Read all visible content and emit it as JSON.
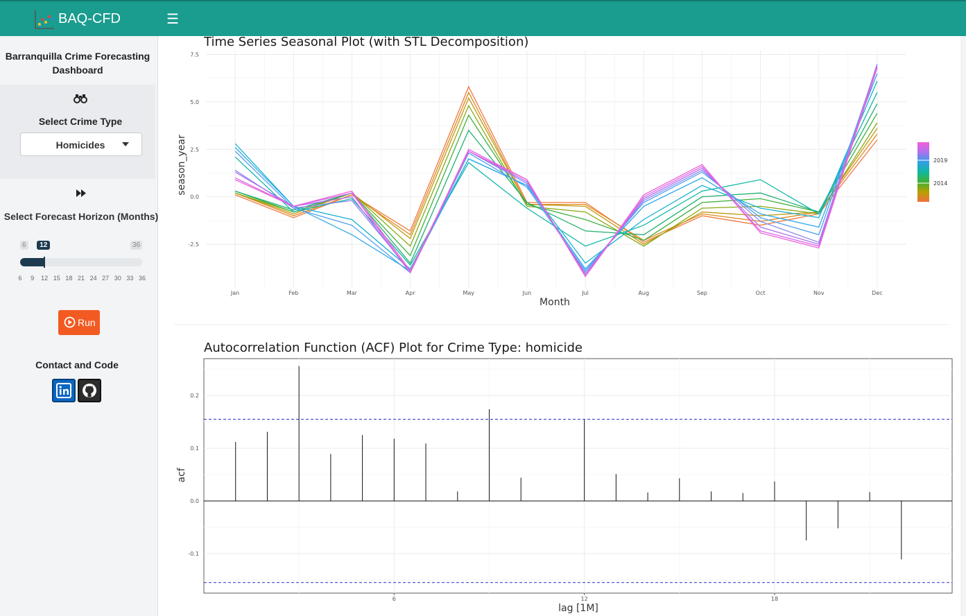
{
  "header": {
    "app_title": "BAQ-CFD",
    "menu_icon": "hamburger-icon"
  },
  "sidebar": {
    "title": "Barranquilla Crime Forecasting Dashboard",
    "crime_type_label": "Select Crime Type",
    "crime_type_value": "Homicides",
    "horizon_label": "Select Forecast Horizon (Months)",
    "slider": {
      "min": "6",
      "max": "36",
      "value": "12",
      "ticks": [
        "6",
        "9",
        "12",
        "15",
        "18",
        "21",
        "24",
        "27",
        "30",
        "33",
        "36"
      ]
    },
    "run_label": "Run",
    "contact_label": "Contact and Code",
    "icons": [
      "binoculars-icon",
      "fast-forward-icon",
      "play-circle-icon",
      "linkedin-icon",
      "github-icon"
    ]
  },
  "chart_data": [
    {
      "type": "line",
      "title": "Time Series Seasonal Plot (with STL Decomposition)",
      "xlabel": "Month",
      "ylabel": "season_year",
      "categories": [
        "Jan",
        "Feb",
        "Mar",
        "Apr",
        "May",
        "Jun",
        "Jul",
        "Aug",
        "Sep",
        "Oct",
        "Nov",
        "Dec"
      ],
      "yticks": [
        "-2.5",
        "0.0",
        "2.5",
        "5.0",
        "7.5"
      ],
      "ylim": [
        -4.8,
        7.7
      ],
      "legend": {
        "position": "right",
        "labels": [
          "2019",
          "2014"
        ],
        "gradient": [
          "#f07040",
          "#b8a000",
          "#40b030",
          "#10b8a0",
          "#30a0e8",
          "#b070f0",
          "#f060d8"
        ]
      },
      "series": [
        {
          "color": "#f07840",
          "values": [
            0.1,
            -1.1,
            0.1,
            -1.8,
            5.8,
            -0.3,
            -0.3,
            -2.4,
            -1.0,
            -1.5,
            -0.9,
            3.0
          ]
        },
        {
          "color": "#e08a20",
          "values": [
            0.2,
            -1.0,
            0.1,
            -2.0,
            5.5,
            -0.4,
            -0.4,
            -2.3,
            -0.9,
            -1.3,
            -0.8,
            3.3
          ]
        },
        {
          "color": "#c09810",
          "values": [
            0.2,
            -0.9,
            0.2,
            -2.2,
            5.2,
            -0.4,
            -0.5,
            -2.5,
            -0.8,
            -1.0,
            -0.8,
            3.6
          ]
        },
        {
          "color": "#88a810",
          "values": [
            0.2,
            -0.8,
            0.2,
            -2.6,
            4.8,
            -0.5,
            -0.8,
            -2.6,
            -0.6,
            -0.5,
            -0.9,
            3.9
          ]
        },
        {
          "color": "#40b040",
          "values": [
            0.3,
            -0.8,
            0.2,
            -3.1,
            4.3,
            -0.4,
            -1.2,
            -2.3,
            -0.3,
            -0.1,
            -0.8,
            4.4
          ]
        },
        {
          "color": "#20b070",
          "values": [
            0.3,
            -0.7,
            0.2,
            -3.5,
            3.5,
            -0.3,
            -1.8,
            -2.0,
            0.0,
            0.2,
            -0.8,
            4.9
          ]
        },
        {
          "color": "#10b8a8",
          "values": [
            2.1,
            -0.8,
            -0.1,
            -3.6,
            1.8,
            -0.6,
            -2.6,
            -1.5,
            0.3,
            0.9,
            -0.9,
            5.5
          ]
        },
        {
          "color": "#18b0d0",
          "values": [
            2.8,
            -0.5,
            -1.2,
            -3.8,
            2.0,
            0.6,
            -3.5,
            -1.2,
            0.6,
            -0.6,
            -1.1,
            6.1
          ]
        },
        {
          "color": "#30a8e8",
          "values": [
            2.6,
            -0.5,
            -2.0,
            -3.9,
            2.0,
            0.6,
            -3.8,
            -0.5,
            1.0,
            -0.9,
            -1.6,
            6.5
          ]
        },
        {
          "color": "#50a0f0",
          "values": [
            2.4,
            -0.6,
            -1.5,
            -4.0,
            2.3,
            0.5,
            -3.9,
            -0.3,
            1.3,
            -1.1,
            -2.0,
            6.9
          ]
        },
        {
          "color": "#8888f0",
          "values": [
            1.4,
            -0.6,
            -0.2,
            -3.9,
            2.4,
            0.7,
            -4.0,
            -0.2,
            1.4,
            -1.3,
            -2.4,
            7.0
          ]
        },
        {
          "color": "#b070f0",
          "values": [
            1.3,
            -0.5,
            0.0,
            -4.0,
            2.4,
            0.8,
            -4.1,
            -0.1,
            1.5,
            -1.6,
            -2.5,
            6.8
          ]
        },
        {
          "color": "#d868e8",
          "values": [
            1.0,
            -0.5,
            0.2,
            -4.0,
            2.5,
            0.9,
            -4.2,
            0.0,
            1.6,
            -1.8,
            -2.6,
            6.9
          ]
        },
        {
          "color": "#f060d8",
          "values": [
            0.9,
            -0.5,
            0.3,
            -3.9,
            2.4,
            0.9,
            -4.2,
            0.1,
            1.7,
            -1.9,
            -2.7,
            6.8
          ]
        }
      ]
    },
    {
      "type": "bar",
      "title": "Autocorrelation Function (ACF) Plot for Crime Type: homicide",
      "xlabel": "lag [1M]",
      "ylabel": "acf",
      "xticks": [
        "6",
        "12",
        "18"
      ],
      "yticks": [
        "-0.1",
        "0.0",
        "0.1",
        "0.2"
      ],
      "ylim": [
        -0.175,
        0.27
      ],
      "xlim": [
        0,
        23.6
      ],
      "confidence_bound": 0.155,
      "lags": [
        1,
        2,
        3,
        4,
        5,
        6,
        7,
        8,
        9,
        10,
        11,
        12,
        13,
        14,
        15,
        16,
        17,
        18,
        19,
        20,
        21,
        22
      ],
      "values": [
        0.112,
        0.131,
        0.256,
        0.089,
        0.125,
        0.118,
        0.109,
        0.018,
        0.174,
        0.044,
        0.0,
        0.154,
        0.051,
        0.016,
        0.043,
        0.018,
        0.015,
        0.037,
        -0.075,
        -0.052,
        0.017,
        -0.111
      ]
    }
  ]
}
